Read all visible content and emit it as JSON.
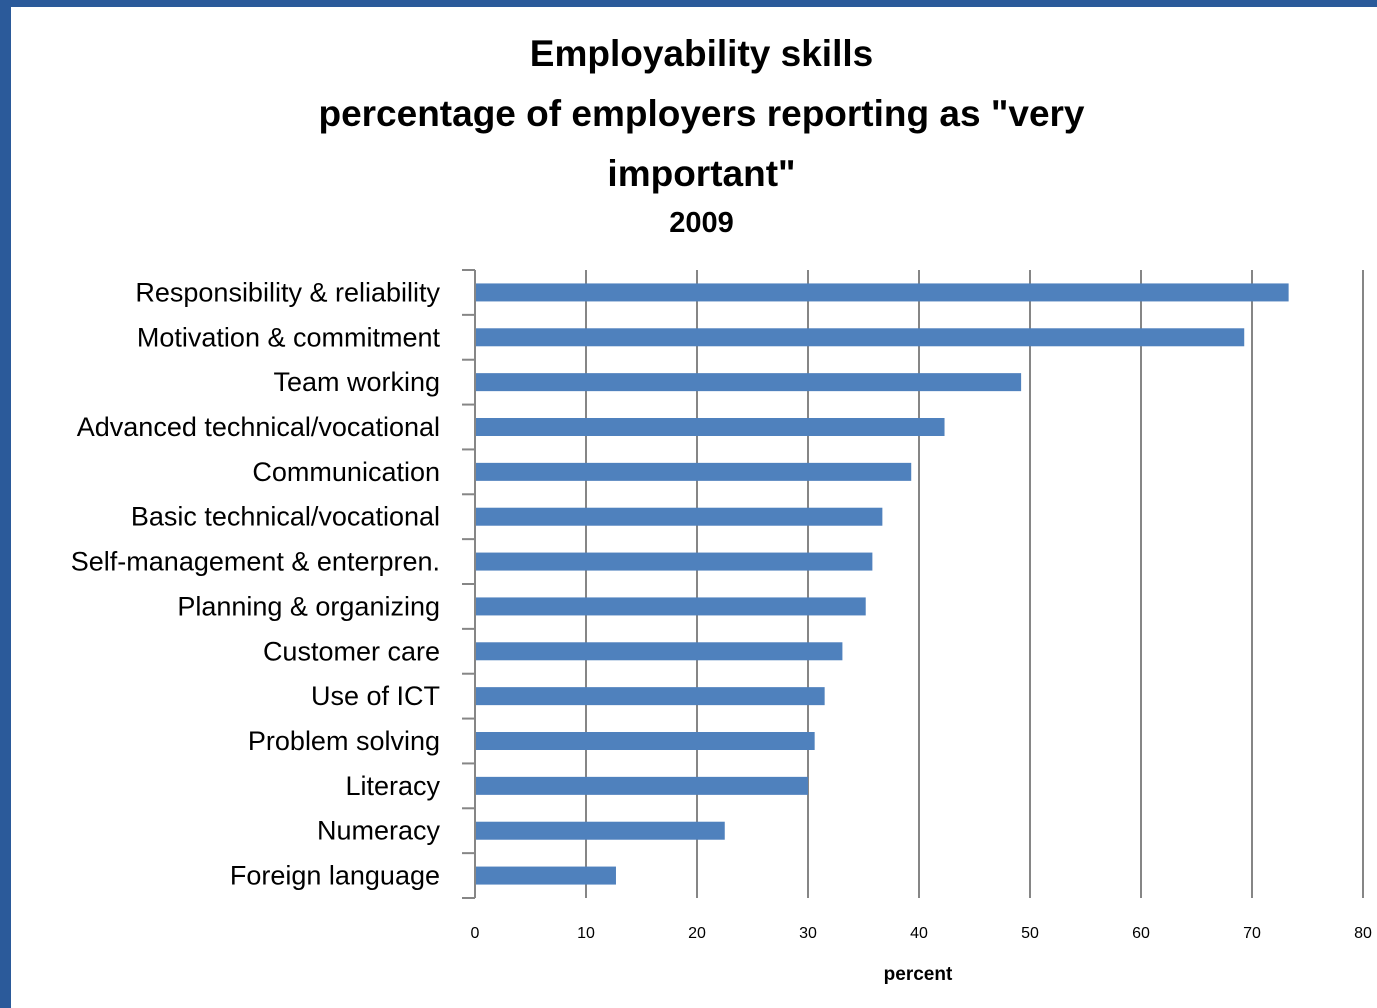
{
  "chart_data": {
    "type": "bar",
    "orientation": "horizontal",
    "title_lines": [
      "Employability skills",
      "percentage of employers reporting as \"very",
      "important\""
    ],
    "subtitle": "2009",
    "xlabel": "percent",
    "ylabel": "",
    "xlim": [
      0,
      80
    ],
    "xticks": [
      0,
      10,
      20,
      30,
      40,
      50,
      60,
      70,
      80
    ],
    "grid": true,
    "legend": "none",
    "bar_color": "#4f81bd",
    "categories": [
      "Responsibility & reliability",
      "Motivation & commitment",
      "Team working",
      "Advanced technical/vocational",
      "Communication",
      "Basic technical/vocational",
      "Self-management & enterpren.",
      "Planning & organizing",
      "Customer care",
      "Use of ICT",
      "Problem solving",
      "Literacy",
      "Numeracy",
      "Foreign language"
    ],
    "values": [
      73.3,
      69.3,
      49.2,
      42.3,
      39.3,
      36.7,
      35.8,
      35.2,
      33.1,
      31.5,
      30.6,
      30.0,
      22.5,
      12.7
    ]
  }
}
